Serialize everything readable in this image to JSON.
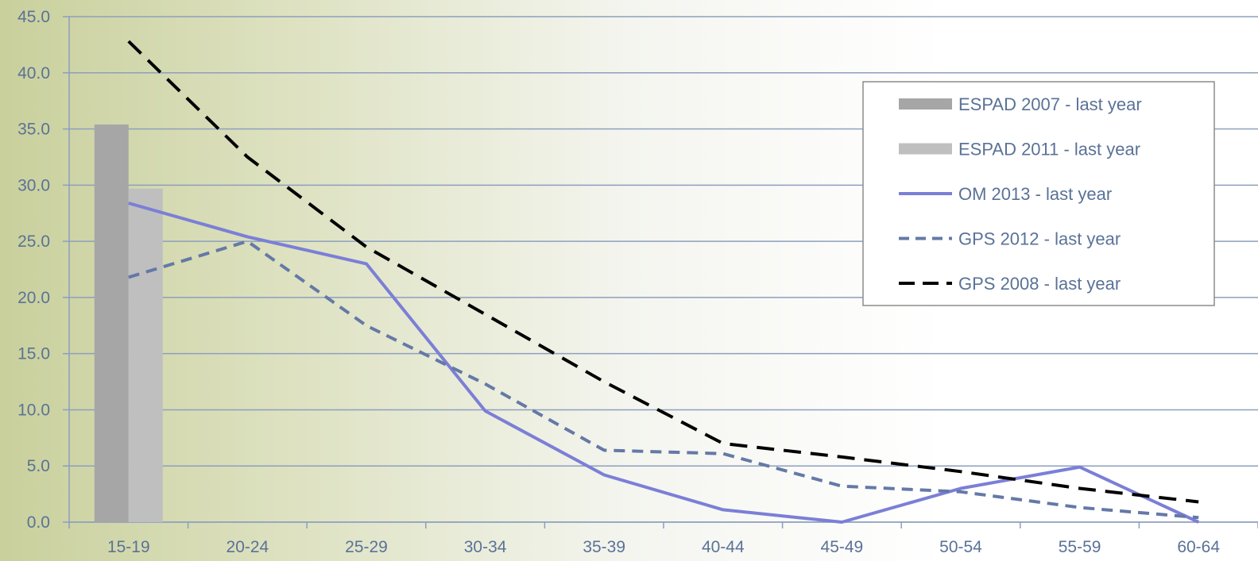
{
  "chart_data": {
    "type": "bar",
    "title": "",
    "xlabel": "",
    "ylabel": "",
    "ylim": [
      0,
      45
    ],
    "yticks": [
      "0.0",
      "5.0",
      "10.0",
      "15.0",
      "20.0",
      "25.0",
      "30.0",
      "35.0",
      "40.0",
      "45.0"
    ],
    "grid": true,
    "legend_position": "top-right",
    "categories": [
      "15-19",
      "20-24",
      "25-29",
      "30-34",
      "35-39",
      "40-44",
      "45-49",
      "50-54",
      "55-59",
      "60-64"
    ],
    "series": [
      {
        "name": "ESPAD 2007 - last year",
        "kind": "bar",
        "color": "#a6a6a6",
        "style": "solid",
        "values": [
          35.4,
          null,
          null,
          null,
          null,
          null,
          null,
          null,
          null,
          null
        ]
      },
      {
        "name": "ESPAD 2011 - last year",
        "kind": "bar",
        "color": "#bfbfbf",
        "style": "solid",
        "values": [
          29.7,
          null,
          null,
          null,
          null,
          null,
          null,
          null,
          null,
          null
        ]
      },
      {
        "name": "OM 2013 - last year",
        "kind": "line",
        "color": "#7b7fd6",
        "style": "solid",
        "values": [
          28.4,
          25.4,
          23.0,
          9.9,
          4.2,
          1.1,
          0.0,
          3.0,
          4.9,
          0.0
        ]
      },
      {
        "name": "GPS 2012 - last year",
        "kind": "line",
        "color": "#6479a6",
        "style": "dashed",
        "values": [
          21.8,
          25.0,
          17.5,
          12.3,
          6.4,
          6.1,
          3.2,
          2.7,
          1.3,
          0.4
        ]
      },
      {
        "name": "GPS 2008 - last year",
        "kind": "line",
        "color": "#000000",
        "style": "dashed",
        "values": [
          42.8,
          32.5,
          24.5,
          18.5,
          12.5,
          7.0,
          5.8,
          4.5,
          3.0,
          1.8
        ]
      }
    ]
  }
}
